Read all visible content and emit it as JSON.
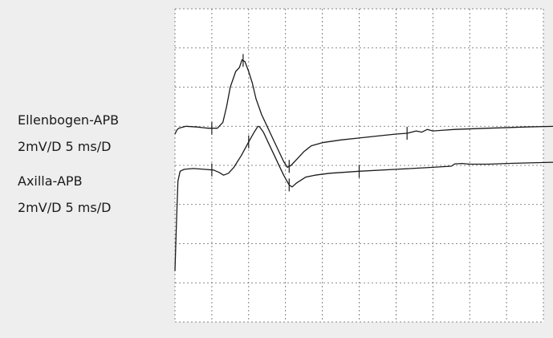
{
  "labels": {
    "trace1_name": "Ellenbogen-APB",
    "trace1_settings": "2mV/D 5 ms/D",
    "trace2_name": "Axilla-APB",
    "trace2_settings": "2mV/D 5 ms/D"
  },
  "colors": {
    "background": "#eeeeee",
    "plot_area": "#ffffff",
    "trace": "#1a1a1a",
    "grid": "#666666"
  },
  "chart_data": {
    "type": "line",
    "grid": true,
    "x_divisions": 10,
    "y_divisions": 8,
    "units_per_division": {
      "x": "5 ms/D",
      "y": "2mV/D"
    },
    "xlim": [
      0,
      10
    ],
    "ylim": [
      -8,
      0
    ],
    "series": [
      {
        "name": "Ellenbogen-APB",
        "points": [
          [
            0.0,
            -3.2
          ],
          [
            0.05,
            -3.1
          ],
          [
            0.1,
            -3.05
          ],
          [
            0.3,
            -3.0
          ],
          [
            0.6,
            -3.02
          ],
          [
            0.9,
            -3.05
          ],
          [
            1.15,
            -3.05
          ],
          [
            1.3,
            -2.9
          ],
          [
            1.4,
            -2.5
          ],
          [
            1.5,
            -2.0
          ],
          [
            1.65,
            -1.6
          ],
          [
            1.75,
            -1.5
          ],
          [
            1.82,
            -1.3
          ],
          [
            1.9,
            -1.35
          ],
          [
            2.0,
            -1.6
          ],
          [
            2.1,
            -1.9
          ],
          [
            2.2,
            -2.3
          ],
          [
            2.35,
            -2.7
          ],
          [
            2.5,
            -3.0
          ],
          [
            2.65,
            -3.3
          ],
          [
            2.8,
            -3.6
          ],
          [
            2.95,
            -3.9
          ],
          [
            3.05,
            -4.05
          ],
          [
            3.15,
            -4.0
          ],
          [
            3.3,
            -3.85
          ],
          [
            3.5,
            -3.65
          ],
          [
            3.7,
            -3.5
          ],
          [
            4.0,
            -3.42
          ],
          [
            4.5,
            -3.35
          ],
          [
            5.0,
            -3.3
          ],
          [
            5.5,
            -3.25
          ],
          [
            6.0,
            -3.2
          ],
          [
            6.3,
            -3.18
          ],
          [
            6.55,
            -3.12
          ],
          [
            6.7,
            -3.15
          ],
          [
            6.85,
            -3.08
          ],
          [
            7.0,
            -3.12
          ],
          [
            7.3,
            -3.1
          ],
          [
            7.6,
            -3.08
          ],
          [
            8.5,
            -3.05
          ],
          [
            9.5,
            -3.02
          ],
          [
            10.3,
            -3.0
          ]
        ],
        "markers_x": [
          1.0,
          1.85,
          3.1,
          6.3
        ]
      },
      {
        "name": "Axilla-APB",
        "points": [
          [
            0.0,
            -6.7
          ],
          [
            0.04,
            -5.5
          ],
          [
            0.08,
            -4.4
          ],
          [
            0.14,
            -4.15
          ],
          [
            0.25,
            -4.1
          ],
          [
            0.5,
            -4.08
          ],
          [
            0.8,
            -4.1
          ],
          [
            1.05,
            -4.12
          ],
          [
            1.2,
            -4.18
          ],
          [
            1.32,
            -4.25
          ],
          [
            1.45,
            -4.2
          ],
          [
            1.6,
            -4.05
          ],
          [
            1.8,
            -3.75
          ],
          [
            2.0,
            -3.4
          ],
          [
            2.15,
            -3.15
          ],
          [
            2.25,
            -3.0
          ],
          [
            2.3,
            -3.02
          ],
          [
            2.4,
            -3.15
          ],
          [
            2.55,
            -3.45
          ],
          [
            2.75,
            -3.85
          ],
          [
            2.95,
            -4.25
          ],
          [
            3.1,
            -4.5
          ],
          [
            3.18,
            -4.55
          ],
          [
            3.3,
            -4.45
          ],
          [
            3.55,
            -4.3
          ],
          [
            3.8,
            -4.25
          ],
          [
            4.2,
            -4.2
          ],
          [
            5.0,
            -4.15
          ],
          [
            6.0,
            -4.1
          ],
          [
            7.0,
            -4.05
          ],
          [
            7.5,
            -4.02
          ],
          [
            7.6,
            -3.96
          ],
          [
            7.8,
            -3.95
          ],
          [
            8.0,
            -3.97
          ],
          [
            8.5,
            -3.97
          ],
          [
            9.0,
            -3.95
          ],
          [
            10.3,
            -3.92
          ]
        ],
        "markers_x": [
          1.0,
          2.0,
          3.1,
          5.0
        ]
      }
    ]
  }
}
